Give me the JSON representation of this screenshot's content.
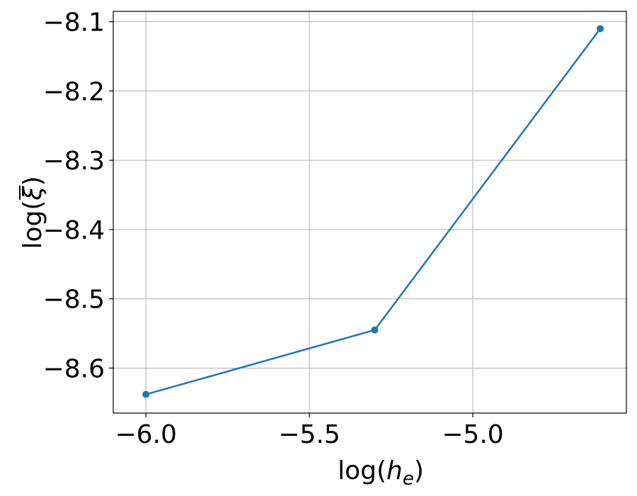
{
  "chart_data": {
    "type": "line",
    "xlabel": "log(h_e)",
    "ylabel": "log(ξ̄)",
    "x_ticks": [
      -6.0,
      -5.5,
      -5.0
    ],
    "x_tick_labels": [
      "−6.0",
      "−5.5",
      "−5.0"
    ],
    "y_ticks": [
      -8.6,
      -8.5,
      -8.4,
      -8.3,
      -8.2,
      -8.1
    ],
    "y_tick_labels": [
      "−8.6",
      "−8.5",
      "−8.4",
      "−8.3",
      "−8.2",
      "−8.1"
    ],
    "xlim": [
      -6.1,
      -4.53
    ],
    "ylim": [
      -8.665,
      -8.085
    ],
    "grid": true,
    "series": [
      {
        "color": "#1f77b4",
        "marker": "circle",
        "x": [
          -6.0,
          -5.3,
          -4.61
        ],
        "y": [
          -8.638,
          -8.545,
          -8.11
        ]
      }
    ]
  }
}
